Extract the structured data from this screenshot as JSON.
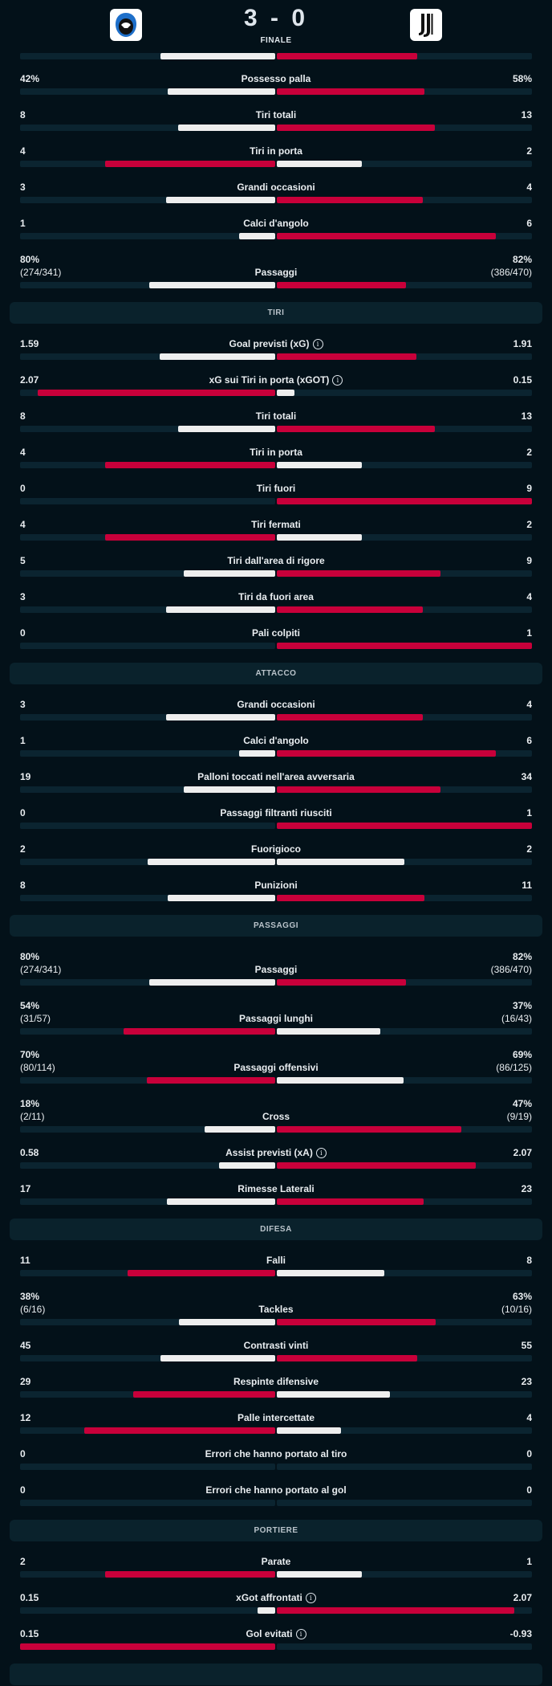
{
  "match": {
    "home_score": "3",
    "away_score": "0",
    "score_separator": "-",
    "status": "FINALE"
  },
  "colors": {
    "winner": "#c8003a",
    "loser": "#eeeeee",
    "track": "#0b2430",
    "background": "#031119"
  },
  "top_partial_bar": {
    "ls": 0.45,
    "rs": 0.55,
    "hl": "right"
  },
  "groups": [
    {
      "title": null,
      "rows": [
        {
          "left": "42%",
          "label": "Possesso palla",
          "right": "58%",
          "ls": 0.42,
          "rs": 0.58,
          "hl": "right"
        },
        {
          "left": "8",
          "label": "Tiri totali",
          "right": "13",
          "ls": 0.381,
          "rs": 0.619,
          "hl": "right"
        },
        {
          "left": "4",
          "label": "Tiri in porta",
          "right": "2",
          "ls": 0.667,
          "rs": 0.333,
          "hl": "left"
        },
        {
          "left": "3",
          "label": "Grandi occasioni",
          "right": "4",
          "ls": 0.429,
          "rs": 0.571,
          "hl": "right"
        },
        {
          "left": "1",
          "label": "Calci d'angolo",
          "right": "6",
          "ls": 0.143,
          "rs": 0.857,
          "hl": "right"
        },
        {
          "left": "80%",
          "left_sub": "(274/341)",
          "label": "Passaggi",
          "right": "82%",
          "right_sub": "(386/470)",
          "ls": 0.494,
          "rs": 0.506,
          "hl": "right"
        }
      ]
    },
    {
      "title": "TIRI",
      "rows": [
        {
          "left": "1.59",
          "label": "Goal previsti (xG)",
          "info": true,
          "right": "1.91",
          "ls": 0.454,
          "rs": 0.546,
          "hl": "right"
        },
        {
          "left": "2.07",
          "label": "xG sui Tiri in porta (xGOT)",
          "info": true,
          "right": "0.15",
          "ls": 0.932,
          "rs": 0.068,
          "hl": "left"
        },
        {
          "left": "8",
          "label": "Tiri totali",
          "right": "13",
          "ls": 0.381,
          "rs": 0.619,
          "hl": "right"
        },
        {
          "left": "4",
          "label": "Tiri in porta",
          "right": "2",
          "ls": 0.667,
          "rs": 0.333,
          "hl": "left"
        },
        {
          "left": "0",
          "label": "Tiri fuori",
          "right": "9",
          "ls": 0,
          "rs": 1,
          "hl": "right"
        },
        {
          "left": "4",
          "label": "Tiri fermati",
          "right": "2",
          "ls": 0.667,
          "rs": 0.333,
          "hl": "left"
        },
        {
          "left": "5",
          "label": "Tiri dall'area di rigore",
          "right": "9",
          "ls": 0.357,
          "rs": 0.643,
          "hl": "right"
        },
        {
          "left": "3",
          "label": "Tiri da fuori area",
          "right": "4",
          "ls": 0.429,
          "rs": 0.571,
          "hl": "right"
        },
        {
          "left": "0",
          "label": "Pali colpiti",
          "right": "1",
          "ls": 0,
          "rs": 1,
          "hl": "right"
        }
      ]
    },
    {
      "title": "ATTACCO",
      "rows": [
        {
          "left": "3",
          "label": "Grandi occasioni",
          "right": "4",
          "ls": 0.429,
          "rs": 0.571,
          "hl": "right"
        },
        {
          "left": "1",
          "label": "Calci d'angolo",
          "right": "6",
          "ls": 0.143,
          "rs": 0.857,
          "hl": "right"
        },
        {
          "left": "19",
          "label": "Palloni toccati nell'area avversaria",
          "right": "34",
          "ls": 0.358,
          "rs": 0.642,
          "hl": "right"
        },
        {
          "left": "0",
          "label": "Passaggi filtranti riusciti",
          "right": "1",
          "ls": 0,
          "rs": 1,
          "hl": "right"
        },
        {
          "left": "2",
          "label": "Fuorigioco",
          "right": "2",
          "ls": 0.5,
          "rs": 0.5,
          "hl": "none"
        },
        {
          "left": "8",
          "label": "Punizioni",
          "right": "11",
          "ls": 0.421,
          "rs": 0.579,
          "hl": "right"
        }
      ]
    },
    {
      "title": "PASSAGGI",
      "rows": [
        {
          "left": "80%",
          "left_sub": "(274/341)",
          "label": "Passaggi",
          "right": "82%",
          "right_sub": "(386/470)",
          "ls": 0.494,
          "rs": 0.506,
          "hl": "right"
        },
        {
          "left": "54%",
          "left_sub": "(31/57)",
          "label": "Passaggi lunghi",
          "right": "37%",
          "right_sub": "(16/43)",
          "ls": 0.593,
          "rs": 0.407,
          "hl": "left"
        },
        {
          "left": "70%",
          "left_sub": "(80/114)",
          "label": "Passaggi offensivi",
          "right": "69%",
          "right_sub": "(86/125)",
          "ls": 0.504,
          "rs": 0.496,
          "hl": "left"
        },
        {
          "left": "18%",
          "left_sub": "(2/11)",
          "label": "Cross",
          "right": "47%",
          "right_sub": "(9/19)",
          "ls": 0.277,
          "rs": 0.723,
          "hl": "right"
        },
        {
          "left": "0.58",
          "label": "Assist previsti (xA)",
          "info": true,
          "right": "2.07",
          "ls": 0.219,
          "rs": 0.781,
          "hl": "right"
        },
        {
          "left": "17",
          "label": "Rimesse Laterali",
          "right": "23",
          "ls": 0.425,
          "rs": 0.575,
          "hl": "right"
        }
      ]
    },
    {
      "title": "DIFESA",
      "rows": [
        {
          "left": "11",
          "label": "Falli",
          "right": "8",
          "ls": 0.579,
          "rs": 0.421,
          "hl": "left"
        },
        {
          "left": "38%",
          "left_sub": "(6/16)",
          "label": "Tackles",
          "right": "63%",
          "right_sub": "(10/16)",
          "ls": 0.376,
          "rs": 0.624,
          "hl": "right"
        },
        {
          "left": "45",
          "label": "Contrasti vinti",
          "right": "55",
          "ls": 0.45,
          "rs": 0.55,
          "hl": "right"
        },
        {
          "left": "29",
          "label": "Respinte difensive",
          "right": "23",
          "ls": 0.558,
          "rs": 0.442,
          "hl": "left"
        },
        {
          "left": "12",
          "label": "Palle intercettate",
          "right": "4",
          "ls": 0.75,
          "rs": 0.25,
          "hl": "left"
        },
        {
          "left": "0",
          "label": "Errori che hanno portato al tiro",
          "right": "0",
          "ls": 0,
          "rs": 0,
          "hl": "none"
        },
        {
          "left": "0",
          "label": "Errori che hanno portato al gol",
          "right": "0",
          "ls": 0,
          "rs": 0,
          "hl": "none"
        }
      ]
    },
    {
      "title": "PORTIERE",
      "rows": [
        {
          "left": "2",
          "label": "Parate",
          "right": "1",
          "ls": 0.667,
          "rs": 0.333,
          "hl": "left"
        },
        {
          "left": "0.15",
          "label": "xGot affrontati",
          "info": true,
          "right": "2.07",
          "ls": 0.068,
          "rs": 0.932,
          "hl": "right"
        },
        {
          "left": "0.15",
          "label": "Gol evitati",
          "info": true,
          "right": "-0.93",
          "ls": 1,
          "rs": 0,
          "hl": "left"
        }
      ]
    }
  ]
}
